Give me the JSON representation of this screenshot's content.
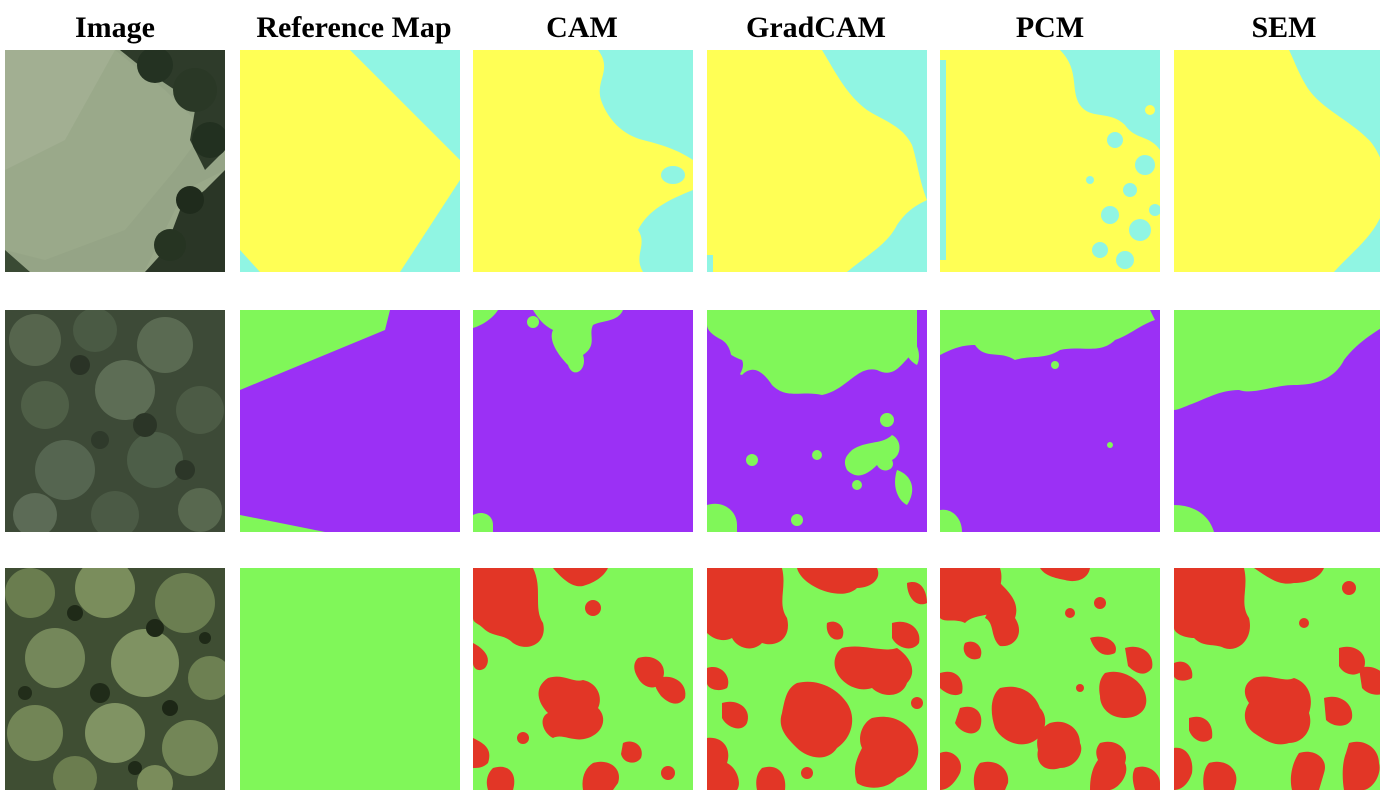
{
  "figure": {
    "columns": [
      {
        "key": "image",
        "label": "Image"
      },
      {
        "key": "reference",
        "label": "Reference Map"
      },
      {
        "key": "cam",
        "label": "CAM"
      },
      {
        "key": "gradcam",
        "label": "GradCAM"
      },
      {
        "key": "pcm",
        "label": "PCM"
      },
      {
        "key": "sem",
        "label": "SEM"
      }
    ],
    "rows": 3,
    "class_colors": {
      "yellow": "#ffff55",
      "cyan": "#90f5e3",
      "green": "#80f759",
      "purple": "#9b30f5",
      "red": "#e23626"
    }
  }
}
